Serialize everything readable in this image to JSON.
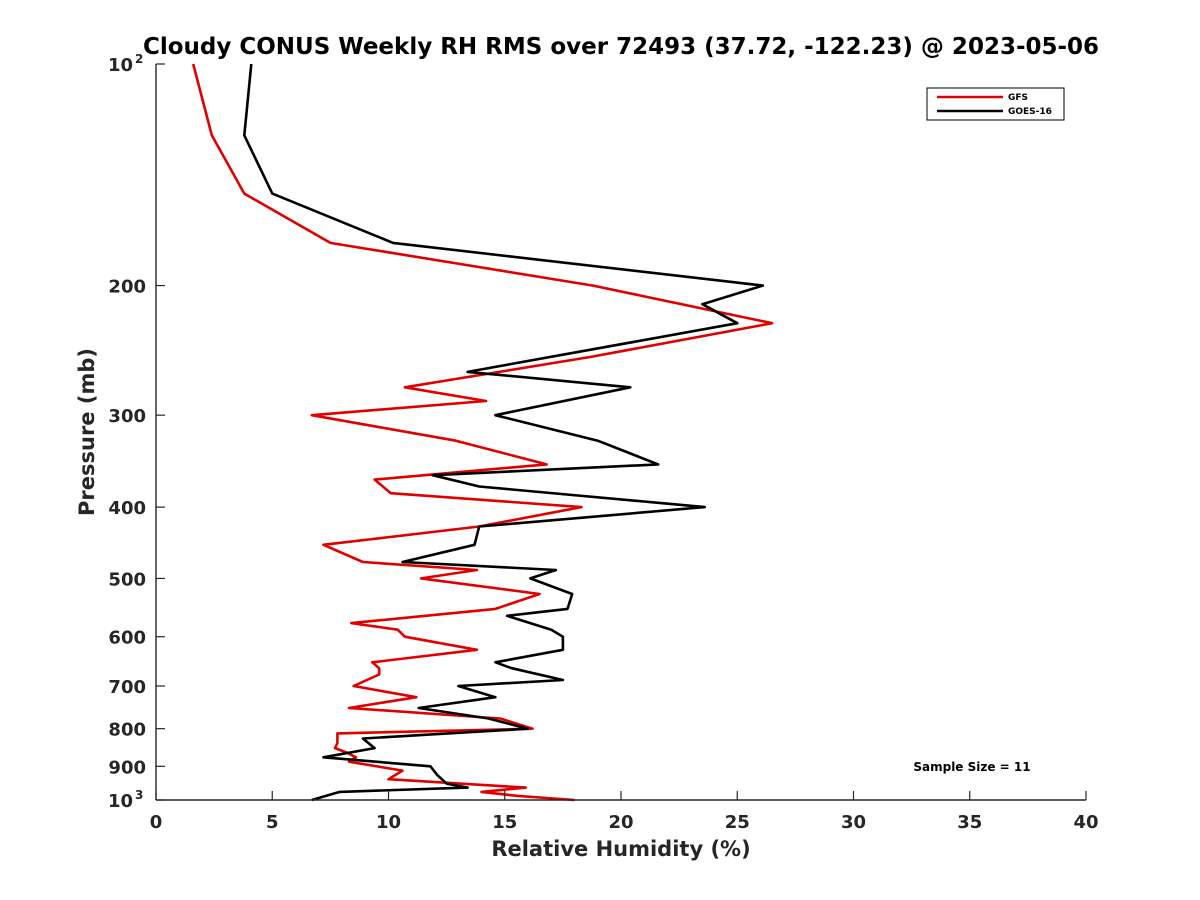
{
  "chart_data": {
    "type": "line",
    "title": "Cloudy CONUS Weekly RH RMS over 72493 (37.72, -122.23) @ 2023-05-06",
    "xlabel": "Relative Humidity (%)",
    "ylabel": "Pressure (mb)",
    "xlim": [
      0,
      40
    ],
    "ylim": [
      100,
      1000
    ],
    "y_scale": "log",
    "y_reversed": true,
    "grid": false,
    "legend_position": "top-right",
    "annotation": "Sample Size = 11",
    "x_ticks": [
      "0",
      "5",
      "10",
      "15",
      "20",
      "25",
      "30",
      "35",
      "40"
    ],
    "y_ticks": [
      {
        "value": 100,
        "base": "10",
        "exp": "2"
      },
      {
        "value": 200,
        "label": "200"
      },
      {
        "value": 300,
        "label": "300"
      },
      {
        "value": 400,
        "label": "400"
      },
      {
        "value": 500,
        "label": "500"
      },
      {
        "value": 600,
        "label": "600"
      },
      {
        "value": 700,
        "label": "700"
      },
      {
        "value": 800,
        "label": "800"
      },
      {
        "value": 900,
        "label": "900"
      },
      {
        "value": 1000,
        "base": "10",
        "exp": "3"
      }
    ],
    "series": [
      {
        "name": "GFS",
        "color": "#e00000",
        "points": [
          [
            1.6,
            100
          ],
          [
            2.4,
            125
          ],
          [
            3.8,
            150
          ],
          [
            7.5,
            175
          ],
          [
            18.8,
            200
          ],
          [
            26.5,
            225
          ],
          [
            18.7,
            250
          ],
          [
            10.7,
            275
          ],
          [
            14.2,
            287
          ],
          [
            6.7,
            300
          ],
          [
            12.9,
            325
          ],
          [
            16.8,
            350
          ],
          [
            9.4,
            367
          ],
          [
            10.1,
            383
          ],
          [
            18.3,
            400
          ],
          [
            13.9,
            425
          ],
          [
            7.2,
            450
          ],
          [
            8.9,
            475
          ],
          [
            13.8,
            487
          ],
          [
            11.4,
            500
          ],
          [
            16.5,
            525
          ],
          [
            14.6,
            550
          ],
          [
            8.4,
            575
          ],
          [
            10.4,
            587
          ],
          [
            10.7,
            600
          ],
          [
            13.8,
            625
          ],
          [
            9.3,
            650
          ],
          [
            9.6,
            662
          ],
          [
            9.6,
            675
          ],
          [
            8.5,
            700
          ],
          [
            11.2,
            725
          ],
          [
            8.3,
            750
          ],
          [
            14.8,
            775
          ],
          [
            16.2,
            800
          ],
          [
            7.8,
            812
          ],
          [
            7.8,
            837
          ],
          [
            7.7,
            850
          ],
          [
            8.2,
            862
          ],
          [
            8.6,
            875
          ],
          [
            8.3,
            887
          ],
          [
            10.6,
            912
          ],
          [
            10.0,
            937
          ],
          [
            15.9,
            962
          ],
          [
            14.0,
            975
          ],
          [
            15.5,
            987
          ],
          [
            18.0,
            1000
          ]
        ]
      },
      {
        "name": "GOES-16",
        "color": "#000000",
        "points": [
          [
            4.1,
            100
          ],
          [
            3.8,
            125
          ],
          [
            5.0,
            150
          ],
          [
            10.2,
            175
          ],
          [
            26.1,
            200
          ],
          [
            23.5,
            212
          ],
          [
            25.0,
            225
          ],
          [
            13.4,
            262
          ],
          [
            20.4,
            275
          ],
          [
            14.6,
            300
          ],
          [
            19.0,
            325
          ],
          [
            21.6,
            350
          ],
          [
            11.9,
            362
          ],
          [
            13.9,
            375
          ],
          [
            23.6,
            400
          ],
          [
            13.9,
            425
          ],
          [
            13.7,
            450
          ],
          [
            10.6,
            475
          ],
          [
            17.2,
            487
          ],
          [
            16.1,
            500
          ],
          [
            17.9,
            525
          ],
          [
            17.7,
            550
          ],
          [
            15.1,
            562
          ],
          [
            17.0,
            587
          ],
          [
            17.5,
            600
          ],
          [
            17.5,
            625
          ],
          [
            14.6,
            650
          ],
          [
            15.3,
            662
          ],
          [
            17.5,
            687
          ],
          [
            13.0,
            700
          ],
          [
            14.6,
            725
          ],
          [
            11.3,
            750
          ],
          [
            14.3,
            775
          ],
          [
            16.0,
            800
          ],
          [
            8.9,
            825
          ],
          [
            9.4,
            850
          ],
          [
            7.2,
            875
          ],
          [
            11.8,
            900
          ],
          [
            12.1,
            925
          ],
          [
            12.5,
            950
          ],
          [
            13.4,
            962
          ],
          [
            7.9,
            975
          ],
          [
            6.7,
            1000
          ]
        ]
      }
    ]
  }
}
